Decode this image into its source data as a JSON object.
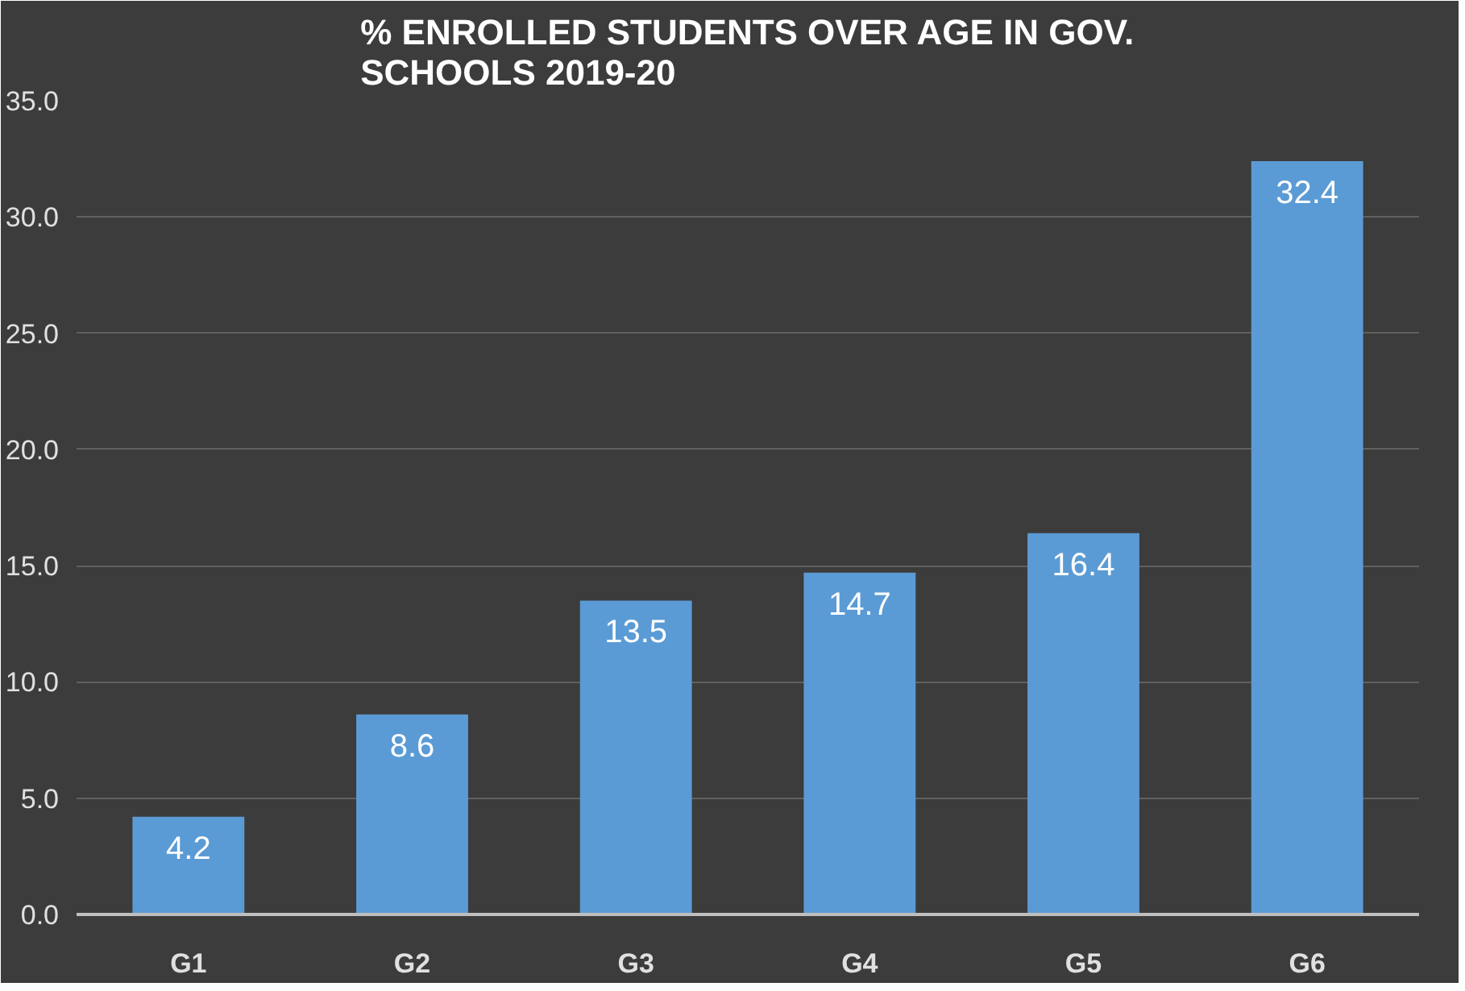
{
  "chart_data": {
    "type": "bar",
    "title": "% ENROLLED STUDENTS OVER AGE IN GOV. SCHOOLS 2019-20",
    "categories": [
      "G1",
      "G2",
      "G3",
      "G4",
      "G5",
      "G6"
    ],
    "values": [
      4.2,
      8.6,
      13.5,
      14.7,
      16.4,
      32.4
    ],
    "color": "#5b9bd5",
    "ylim": [
      0,
      35
    ],
    "yticks": [
      {
        "value": 0,
        "label": "0.0"
      },
      {
        "value": 5,
        "label": "5.0"
      },
      {
        "value": 10,
        "label": "10.0"
      },
      {
        "value": 15,
        "label": "15.0"
      },
      {
        "value": 20,
        "label": "20.0"
      },
      {
        "value": 25,
        "label": "25.0"
      },
      {
        "value": 30,
        "label": "30.0"
      },
      {
        "value": 35,
        "label": "35.0"
      }
    ],
    "grid": "y",
    "data_labels": true
  }
}
